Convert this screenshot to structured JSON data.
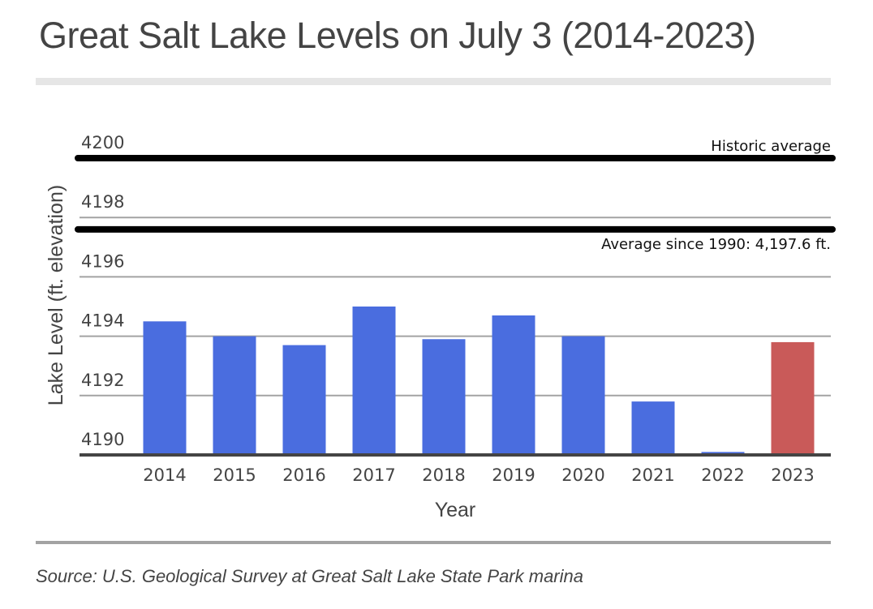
{
  "title": "Great Salt Lake Levels on July 3 (2014-2023)",
  "source": "Source: U.S. Geological Survey at Great Salt Lake State Park marina",
  "colors": {
    "bar": "#4a6ddf",
    "highlight_bar": "#c95a59",
    "gridline": "#a3a3a3",
    "baseline": "#444444",
    "reference_line": "#000000",
    "text": "#444444"
  },
  "chart_data": {
    "type": "bar",
    "title": "Great Salt Lake Levels on July 3 (2014-2023)",
    "xlabel": "Year",
    "ylabel": "Lake Level (ft. elevation)",
    "categories": [
      "2014",
      "2015",
      "2016",
      "2017",
      "2018",
      "2019",
      "2020",
      "2021",
      "2022",
      "2023"
    ],
    "values": [
      4194.5,
      4194.0,
      4193.7,
      4195.0,
      4193.9,
      4194.7,
      4194.0,
      4191.8,
      4190.1,
      4193.8
    ],
    "highlight": [
      "2023"
    ],
    "ylim": [
      4190,
      4200
    ],
    "yticks": [
      "4190",
      "4192",
      "4194",
      "4196",
      "4198",
      "4200"
    ],
    "ytick_values": [
      4190,
      4192,
      4194,
      4196,
      4198,
      4200
    ],
    "grid": true,
    "reference_lines": [
      {
        "value": 4200,
        "label": "Historic average"
      },
      {
        "value": 4197.6,
        "label": "Average since 1990: 4,197.6 ft."
      }
    ]
  }
}
